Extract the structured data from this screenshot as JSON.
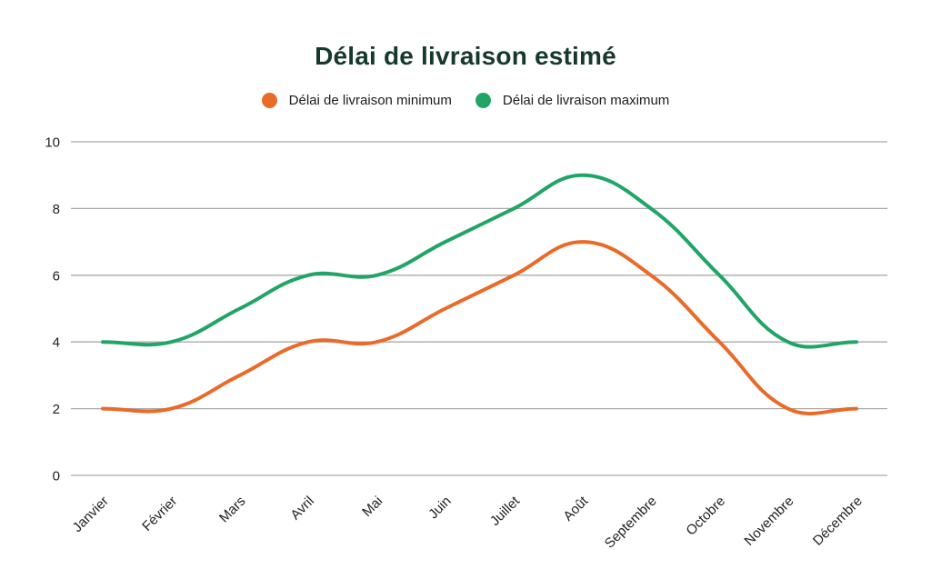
{
  "chart_data": {
    "type": "line",
    "title": "Délai de livraison estimé",
    "categories": [
      "Janvier",
      "Février",
      "Mars",
      "Avril",
      "Mai",
      "Juin",
      "Juillet",
      "Août",
      "Septembre",
      "Octobre",
      "Novembre",
      "Décembre"
    ],
    "series": [
      {
        "name": "Délai de livraison minimum",
        "color": "#EA6A28",
        "values": [
          2,
          2,
          3,
          4,
          4,
          5,
          6,
          7,
          6,
          4,
          2,
          2
        ]
      },
      {
        "name": "Délai de livraison maximum",
        "color": "#21A566",
        "values": [
          4,
          4,
          5,
          6,
          6,
          7,
          8,
          9,
          8,
          6,
          4,
          4
        ]
      }
    ],
    "xlabel": "",
    "ylabel": "",
    "ylim": [
      0,
      10
    ],
    "yticks": [
      0,
      2,
      4,
      6,
      8,
      10
    ],
    "grid": true,
    "legend_position": "top",
    "line_smoothing": "bezier",
    "x_label_rotation": -45
  },
  "colors": {
    "title": "#17392D",
    "grid": "#A9A9A9",
    "axis_text": "#1f1f1f",
    "background": "#ffffff"
  }
}
